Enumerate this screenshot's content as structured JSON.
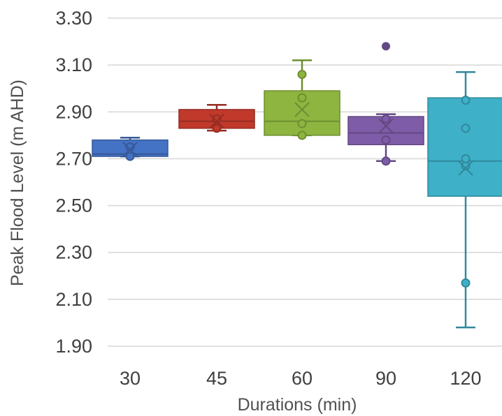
{
  "chart_data": {
    "type": "box",
    "title": "",
    "xlabel": "Durations (min)",
    "ylabel": "Peak Flood Level (m AHD)",
    "ylim": [
      1.9,
      3.3
    ],
    "yticks": [
      "3.30",
      "3.10",
      "2.90",
      "2.70",
      "2.50",
      "2.30",
      "2.10",
      "1.90"
    ],
    "ytick_values": [
      3.3,
      3.1,
      2.9,
      2.7,
      2.5,
      2.3,
      2.1,
      1.9
    ],
    "grid": true,
    "legend": "none",
    "categories": [
      "30",
      "45",
      "60",
      "90",
      "120"
    ],
    "boxes": [
      {
        "category": "30",
        "color": "#4472c4",
        "min": 2.71,
        "q1": 2.71,
        "median": 2.72,
        "q3": 2.78,
        "max": 2.79,
        "mean": 2.74,
        "points": [
          2.71,
          2.75
        ],
        "outliers": []
      },
      {
        "category": "45",
        "color": "#c0392b",
        "min": 2.82,
        "q1": 2.83,
        "median": 2.86,
        "q3": 2.91,
        "max": 2.93,
        "mean": 2.86,
        "points": [
          2.83,
          2.87
        ],
        "outliers": []
      },
      {
        "category": "60",
        "color": "#8db53f",
        "min": 2.8,
        "q1": 2.8,
        "median": 2.86,
        "q3": 2.99,
        "max": 3.12,
        "mean": 2.91,
        "points": [
          2.8,
          2.85,
          2.96,
          3.06
        ],
        "outliers": []
      },
      {
        "category": "90",
        "color": "#7f5ca8",
        "min": 2.69,
        "q1": 2.76,
        "median": 2.81,
        "q3": 2.88,
        "max": 2.89,
        "mean": 2.84,
        "points": [
          2.69,
          2.78,
          2.87
        ],
        "outliers": [
          3.18
        ]
      },
      {
        "category": "120",
        "color": "#3eb0c8",
        "min": 1.98,
        "q1": 2.54,
        "median": 2.69,
        "q3": 2.96,
        "max": 3.07,
        "mean": 2.66,
        "points": [
          2.17,
          2.67,
          2.7,
          2.83,
          2.95
        ],
        "outliers": []
      }
    ]
  }
}
